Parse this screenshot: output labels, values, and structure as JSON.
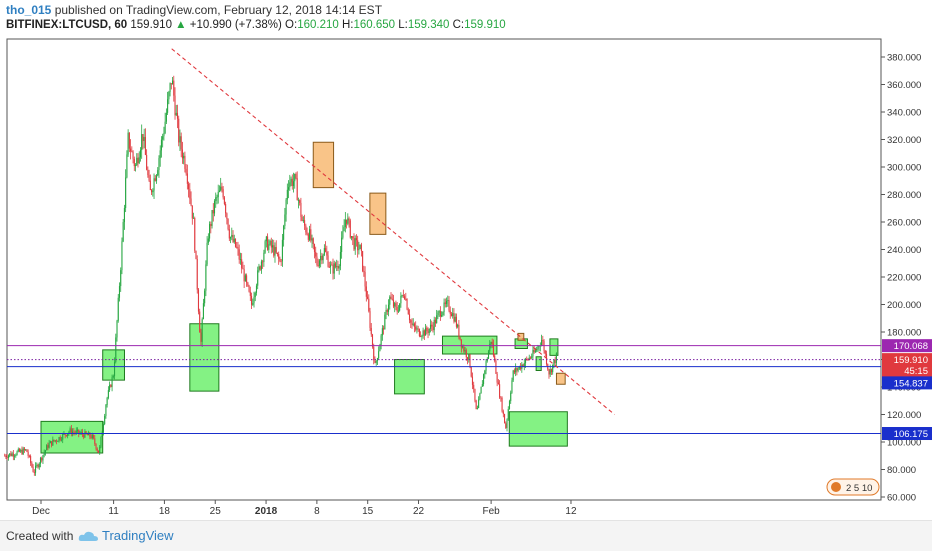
{
  "header": {
    "author": "tho_015",
    "published": "published on TradingView.com, February 12, 2018 14:14 EST",
    "symbol": "BITFINEX:LTCUSD, 60",
    "last": "159.910",
    "change_arrow": "▲",
    "change": "+10.990 (+7.38%)",
    "open_label": "O:",
    "open": "160.210",
    "high_label": "H:",
    "high": "160.650",
    "low_label": "L:",
    "low": "159.340",
    "close_label": "C:",
    "close": "159.910"
  },
  "footer": {
    "created_with": "Created with",
    "brand": "TradingView"
  },
  "colors": {
    "up": "#26a641",
    "down": "#e0393e",
    "green_box": "#6ef06e",
    "orange_box": "#f8b56a",
    "trend": "#e0393e",
    "purple": "#9c27b0",
    "blue": "#1a2fcc"
  },
  "chart_data": {
    "type": "candlestick",
    "ylim": [
      55,
      390
    ],
    "y_ticks": [
      60,
      80,
      100,
      120,
      140,
      160,
      180,
      200,
      220,
      240,
      260,
      280,
      300,
      320,
      340,
      360,
      380
    ],
    "y_tick_labels": [
      "60.000",
      "80.000",
      "100.000",
      "120.000",
      "140.000",
      "160.000",
      "180.000",
      "200.000",
      "220.000",
      "240.000",
      "260.000",
      "280.000",
      "300.000",
      "320.000",
      "340.000",
      "360.000",
      "380.000"
    ],
    "x_range_days": [
      -5,
      50
    ],
    "x_ticks": [
      {
        "day": 0,
        "label": "Dec"
      },
      {
        "day": 10,
        "label": "11"
      },
      {
        "day": 17,
        "label": "18"
      },
      {
        "day": 24,
        "label": "25"
      },
      {
        "day": 31,
        "label": "2018"
      },
      {
        "day": 38,
        "label": "8"
      },
      {
        "day": 45,
        "label": "15"
      },
      {
        "day": 52,
        "label": "22"
      },
      {
        "day": 62,
        "label": "Feb"
      },
      {
        "day": 73,
        "label": "12"
      }
    ],
    "price_path": [
      [
        -5,
        90
      ],
      [
        -2,
        94
      ],
      [
        -1,
        78
      ],
      [
        1,
        98
      ],
      [
        4,
        108
      ],
      [
        7,
        104
      ],
      [
        8,
        92
      ],
      [
        9,
        130
      ],
      [
        10,
        150
      ],
      [
        11,
        230
      ],
      [
        12,
        320
      ],
      [
        13,
        300
      ],
      [
        14,
        325
      ],
      [
        15,
        280
      ],
      [
        16,
        300
      ],
      [
        17,
        330
      ],
      [
        18,
        365
      ],
      [
        19,
        320
      ],
      [
        20,
        300
      ],
      [
        21,
        260
      ],
      [
        22,
        170
      ],
      [
        23,
        250
      ],
      [
        24,
        275
      ],
      [
        25,
        285
      ],
      [
        26,
        250
      ],
      [
        27,
        240
      ],
      [
        28,
        220
      ],
      [
        29,
        200
      ],
      [
        30,
        225
      ],
      [
        31,
        245
      ],
      [
        32,
        240
      ],
      [
        33,
        230
      ],
      [
        34,
        290
      ],
      [
        35,
        290
      ],
      [
        36,
        260
      ],
      [
        37,
        250
      ],
      [
        38,
        230
      ],
      [
        39,
        240
      ],
      [
        40,
        225
      ],
      [
        41,
        230
      ],
      [
        42,
        265
      ],
      [
        43,
        245
      ],
      [
        44,
        240
      ],
      [
        45,
        200
      ],
      [
        46,
        155
      ],
      [
        47,
        180
      ],
      [
        48,
        205
      ],
      [
        49,
        195
      ],
      [
        50,
        210
      ],
      [
        51,
        185
      ],
      [
        52,
        180
      ],
      [
        53,
        180
      ],
      [
        54,
        185
      ],
      [
        55,
        195
      ],
      [
        56,
        200
      ],
      [
        57,
        190
      ],
      [
        58,
        170
      ],
      [
        59,
        160
      ],
      [
        60,
        120
      ],
      [
        61,
        150
      ],
      [
        62,
        175
      ],
      [
        63,
        140
      ],
      [
        64,
        110
      ],
      [
        65,
        150
      ],
      [
        66,
        155
      ],
      [
        67,
        160
      ],
      [
        68,
        165
      ],
      [
        69,
        175
      ],
      [
        70,
        150
      ],
      [
        71,
        162
      ]
    ],
    "boxes": [
      {
        "kind": "green",
        "d0": 0,
        "d1": 8.5,
        "p0": 92,
        "p1": 115
      },
      {
        "kind": "green",
        "d0": 8.5,
        "d1": 11.5,
        "p0": 145,
        "p1": 167
      },
      {
        "kind": "green",
        "d0": 20.5,
        "d1": 24.5,
        "p0": 137,
        "p1": 186
      },
      {
        "kind": "orange",
        "d0": 37.5,
        "d1": 40.3,
        "p0": 285,
        "p1": 318
      },
      {
        "kind": "orange",
        "d0": 45.3,
        "d1": 47.5,
        "p0": 251,
        "p1": 281
      },
      {
        "kind": "green",
        "d0": 48.7,
        "d1": 52.8,
        "p0": 135,
        "p1": 160
      },
      {
        "kind": "green",
        "d0": 55.3,
        "d1": 62.8,
        "p0": 164,
        "p1": 177
      },
      {
        "kind": "green",
        "d0": 64.5,
        "d1": 72.5,
        "p0": 97,
        "p1": 122
      },
      {
        "kind": "green",
        "d0": 65.3,
        "d1": 67.0,
        "p0": 168,
        "p1": 175
      },
      {
        "kind": "orange",
        "d0": 65.7,
        "d1": 66.5,
        "p0": 174,
        "p1": 179
      },
      {
        "kind": "green",
        "d0": 68.2,
        "d1": 68.9,
        "p0": 152,
        "p1": 162
      },
      {
        "kind": "green",
        "d0": 70.1,
        "d1": 71.2,
        "p0": 163,
        "p1": 175
      },
      {
        "kind": "orange",
        "d0": 71.0,
        "d1": 72.2,
        "p0": 142,
        "p1": 150
      }
    ],
    "trendline": {
      "d0": 18,
      "p0": 386,
      "d1": 79,
      "p1": 120
    },
    "hlines": [
      {
        "price": 170.068,
        "color": "#9c27b0",
        "style": "solid"
      },
      {
        "price": 159.91,
        "color": "#7b1fa2",
        "style": "dotted"
      },
      {
        "price": 154.837,
        "color": "#1a2fcc",
        "style": "solid"
      },
      {
        "price": 106.175,
        "color": "#1a2fcc",
        "style": "solid"
      }
    ],
    "price_tags": [
      {
        "text": "170.068",
        "price": 170.068,
        "bg": "#9c27b0"
      },
      {
        "text": "159.910",
        "price": 159.91,
        "bg": "#e0393e"
      },
      {
        "text": "45:15",
        "price": 152.0,
        "bg": "#e0393e"
      },
      {
        "text": "154.837",
        "price": 143.0,
        "bg": "#1a2fcc"
      },
      {
        "text": "106.175",
        "price": 106.175,
        "bg": "#1a2fcc"
      }
    ],
    "watermark_text": "2  5  10"
  }
}
